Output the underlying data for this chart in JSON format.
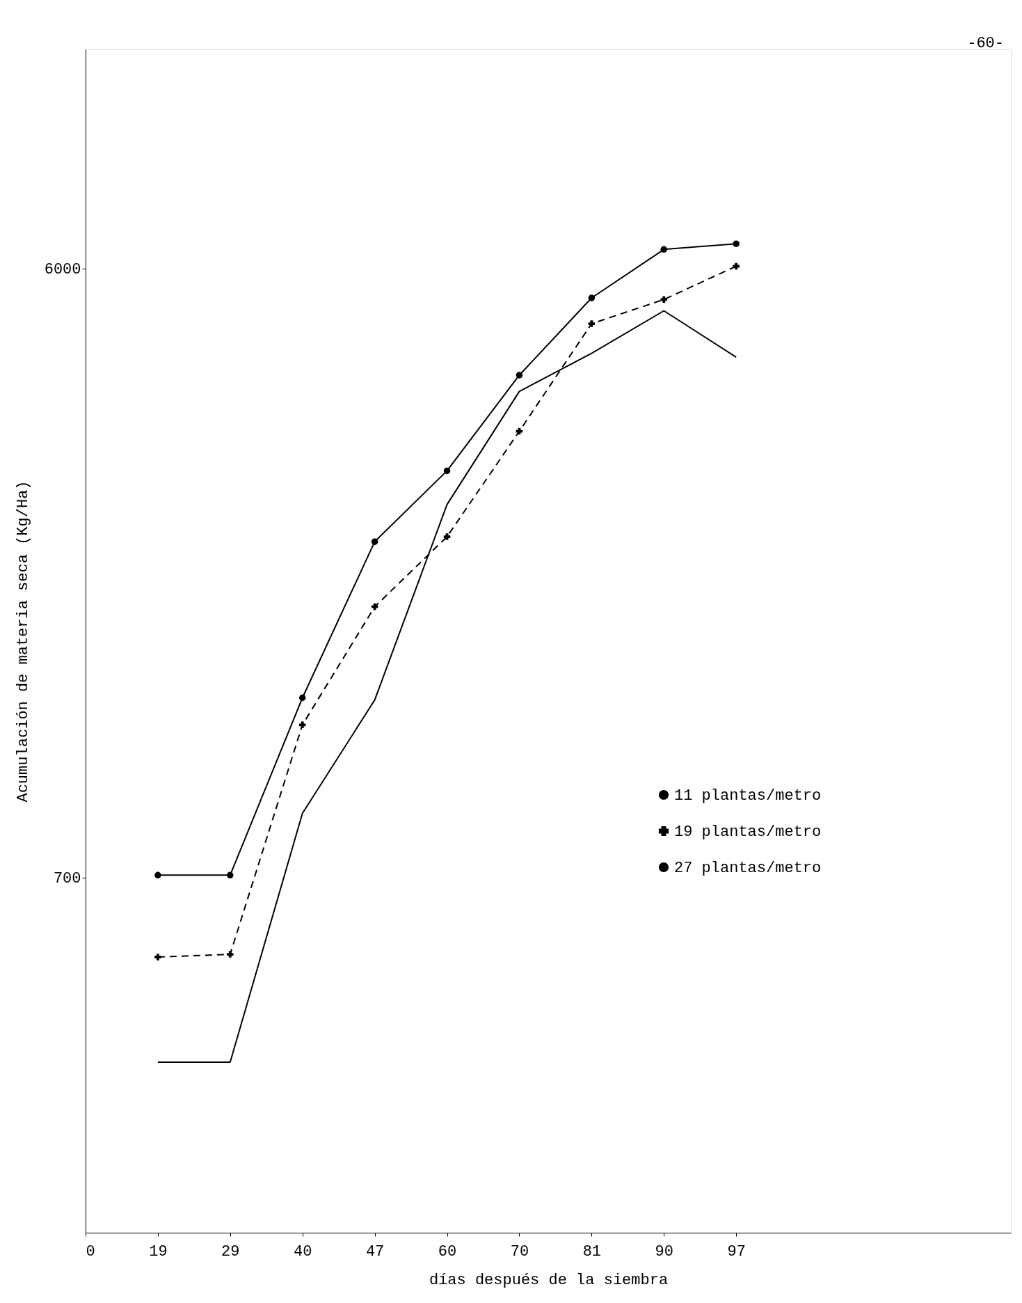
{
  "chart_data": {
    "type": "line",
    "xlabel": "días después de la siembra",
    "ylabel": "Acumulación de materia seca (Kg/Ha)",
    "categories": [
      "0",
      "19",
      "29",
      "40",
      "47",
      "60",
      "70",
      "81",
      "90",
      "97"
    ],
    "series": [
      {
        "name": "11 plantas/metro",
        "color": "#000000",
        "marker": "circle",
        "line_style": "solid",
        "values": [
          null,
          706,
          706,
          1320,
          2290,
          2940,
          4120,
          5410,
          6420,
          6550
        ]
      },
      {
        "name": "19 plantas/metro",
        "color": "#000000",
        "marker": "cross",
        "line_style": "dashed",
        "values": [
          null,
          529,
          534,
          1200,
          1820,
          2330,
          3380,
          4940,
          5380,
          6050
        ]
      },
      {
        "name": "27 plantas/metro",
        "color": "#000000",
        "marker": "none",
        "line_style": "solid",
        "values": [
          null,
          365,
          365,
          878,
          1310,
          2610,
          3890,
          4450,
          5170,
          4390
        ]
      }
    ],
    "log": "y",
    "ylim": [
      200,
      13000
    ],
    "yticks": [
      700,
      6000
    ],
    "grid": false,
    "legend": "right",
    "annotations": [
      "-60-"
    ]
  }
}
